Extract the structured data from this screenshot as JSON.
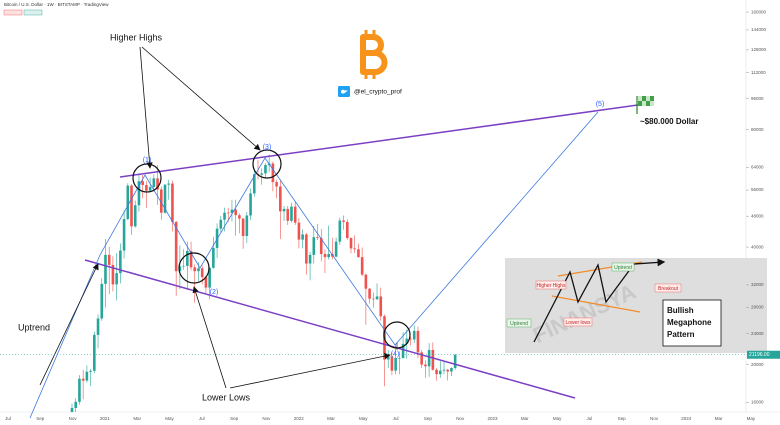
{
  "chart_data": {
    "type": "candlestick",
    "title": "Bitcoin / U.S. Dollar · 1W · BITSTAMP · TradingView",
    "open": [
      13800,
      15480,
      16060,
      18400,
      18200,
      19170,
      19280,
      23830,
      26250,
      32200,
      38200,
      36000,
      32100,
      34300,
      39200,
      47200,
      57500,
      45200,
      51200,
      59000,
      57700,
      55800,
      57000,
      60000,
      56200,
      49000,
      57800,
      58200,
      46400,
      34700,
      35700,
      35800,
      39100,
      35500,
      34700,
      35300,
      33500,
      31500,
      35400,
      39800,
      44600,
      47000,
      49000,
      48900,
      49900,
      48300,
      47300,
      42700,
      48200,
      54900,
      61500,
      61300,
      61800,
      64900,
      65500,
      58700,
      57200,
      49400,
      50100,
      46700,
      50800,
      46200,
      41800,
      43100,
      36300,
      38200,
      42400,
      42200,
      38400,
      37700,
      38400,
      37800,
      41300,
      46800,
      46400,
      42200,
      39700,
      39500,
      37700,
      34000,
      31300,
      29500,
      29400,
      29900,
      26600,
      20600,
      21000,
      19300,
      20800,
      20800,
      22600,
      23300,
      23200,
      24400,
      21500,
      20000,
      19800,
      21800,
      19400,
      18900,
      19300,
      19400,
      19200,
      19600
    ],
    "high": [
      15900,
      16400,
      18800,
      19400,
      19900,
      19500,
      24300,
      26900,
      33300,
      42000,
      40100,
      37900,
      38600,
      40900,
      49700,
      58300,
      58000,
      52600,
      61800,
      61200,
      59000,
      60200,
      61400,
      64900,
      57200,
      58000,
      59500,
      59200,
      46700,
      40400,
      39500,
      41300,
      41300,
      36100,
      36600,
      35900,
      33800,
      35500,
      42500,
      46000,
      48100,
      50500,
      50400,
      52900,
      52900,
      48800,
      47600,
      49200,
      56500,
      62900,
      67000,
      63700,
      65600,
      69000,
      66300,
      59500,
      59100,
      51000,
      51000,
      52000,
      52100,
      47500,
      44400,
      43500,
      38900,
      45300,
      45800,
      44500,
      39400,
      45400,
      42300,
      42300,
      47600,
      48200,
      47100,
      42400,
      42900,
      40800,
      39900,
      34200,
      31400,
      30600,
      32300,
      31500,
      26900,
      21800,
      21500,
      22500,
      21600,
      24200,
      24600,
      23600,
      25200,
      25000,
      21800,
      20500,
      22700,
      22800,
      19600,
      20400,
      20400,
      19500,
      19700,
      21300
    ],
    "low": [
      13200,
      14700,
      15800,
      16300,
      18000,
      17600,
      19000,
      22000,
      25900,
      28000,
      30300,
      30800,
      29200,
      32300,
      37400,
      46900,
      43000,
      44900,
      49300,
      53300,
      50400,
      55400,
      55500,
      51300,
      47000,
      48700,
      52900,
      43900,
      30000,
      31200,
      35000,
      31100,
      34900,
      28800,
      32700,
      32100,
      30500,
      29400,
      35200,
      37500,
      43800,
      43900,
      46400,
      46600,
      42800,
      43400,
      39600,
      41000,
      46900,
      53900,
      59600,
      57800,
      60200,
      62400,
      55600,
      53300,
      42000,
      46700,
      45600,
      46200,
      45600,
      39700,
      39700,
      34000,
      32900,
      36300,
      41700,
      36800,
      34300,
      37200,
      37200,
      37700,
      40500,
      44300,
      41800,
      38600,
      38600,
      37600,
      33700,
      25300,
      28700,
      28000,
      29300,
      25900,
      17600,
      19600,
      18800,
      18900,
      18900,
      20700,
      20700,
      22400,
      22700,
      20800,
      19600,
      18500,
      18600,
      19300,
      18200,
      18500,
      18900,
      18200,
      18700,
      19400
    ],
    "close": [
      15480,
      16060,
      18400,
      18200,
      19170,
      19280,
      23830,
      26250,
      32200,
      38200,
      36000,
      32100,
      34300,
      39200,
      47200,
      57500,
      45200,
      51200,
      59000,
      57700,
      55800,
      57000,
      60000,
      56200,
      49000,
      57800,
      58200,
      46400,
      34700,
      35700,
      35800,
      39100,
      35500,
      34700,
      35300,
      33500,
      31500,
      35400,
      39800,
      44600,
      47000,
      49000,
      48900,
      49900,
      48300,
      47300,
      42700,
      48200,
      54900,
      61500,
      61300,
      61800,
      64900,
      65500,
      58700,
      57200,
      49400,
      50100,
      46700,
      50800,
      46200,
      41800,
      43100,
      36300,
      38200,
      42400,
      42200,
      38400,
      37700,
      38400,
      37800,
      41300,
      46800,
      46400,
      42200,
      39700,
      39500,
      37700,
      34000,
      31300,
      29500,
      29400,
      29900,
      26600,
      20600,
      21000,
      19300,
      20800,
      20800,
      22600,
      23300,
      23200,
      24400,
      21500,
      20000,
      19800,
      21800,
      19400,
      18900,
      19300,
      19400,
      19200,
      19600,
      21196
    ],
    "up_color": "#26a69a",
    "down_color": "#ef5350",
    "log_scale": true,
    "grid": false,
    "ylim": [
      15300,
      162000
    ],
    "yticks": [
      16000,
      20000,
      24000,
      28000,
      32000,
      40000,
      48000,
      56000,
      64000,
      80000,
      96000,
      112000,
      128000,
      144000,
      160000
    ],
    "x_labels": [
      "Jul",
      "Sep",
      "Nov",
      "2021",
      "Mar",
      "May",
      "Jul",
      "Sep",
      "Nov",
      "2022",
      "Mar",
      "May",
      "Jul",
      "Sep",
      "Nov",
      "2023",
      "Mar",
      "May",
      "Jul",
      "Sep",
      "Nov",
      "2024",
      "Mar",
      "May"
    ],
    "last_price_label": "21196.00",
    "annotations": {
      "higher_highs": "Higher Highs",
      "lower_lows": "Lower Lows",
      "uptrend": "Uptrend",
      "point_labels": [
        "(1)",
        "(2)",
        "(3)",
        "(4)",
        "(5)"
      ],
      "target": "~$80.000 Dollar",
      "handle": "@el_crypto_prof"
    },
    "inset": {
      "uptrend_top": "Uptrend",
      "higher_highs": "Higher Highs",
      "breakout": "Breakout",
      "lower_lows": "Lower lows",
      "uptrend_left": "Uptrend",
      "pattern": [
        "Bullish",
        "Megaphone",
        "Pattern"
      ],
      "watermark": "FINANSYA"
    }
  }
}
